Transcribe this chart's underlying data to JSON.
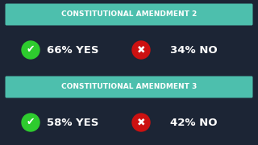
{
  "background_color": "#1c2535",
  "header_color": "#4dbfad",
  "header_text_color": "#ffffff",
  "result_text_color": "#ffffff",
  "amendments": [
    {
      "title": "CONSTITUTIONAL AMENDMENT 2",
      "yes_pct": "66%",
      "no_pct": "34%",
      "yes_label": "YES",
      "no_label": "NO"
    },
    {
      "title": "CONSTITUTIONAL AMENDMENT 3",
      "yes_pct": "58%",
      "no_pct": "42%",
      "yes_label": "YES",
      "no_label": "NO"
    }
  ],
  "check_color": "#2ecc2e",
  "x_color": "#cc1111",
  "header_font_size": 6.5,
  "result_font_size": 9.5,
  "icon_font_size": 9
}
